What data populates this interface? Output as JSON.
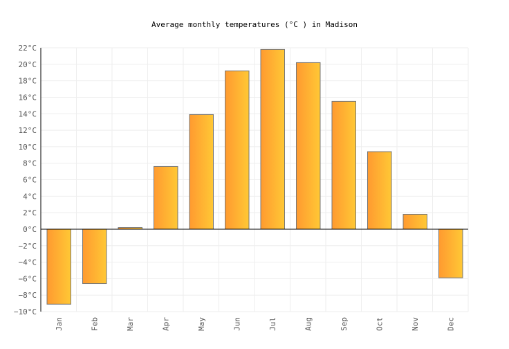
{
  "chart_data": {
    "type": "bar",
    "title": "Average monthly temperatures (°C ) in Madison",
    "xlabel": "",
    "ylabel": "",
    "unit": "°C",
    "categories": [
      "Jan",
      "Feb",
      "Mar",
      "Apr",
      "May",
      "Jun",
      "Jul",
      "Aug",
      "Sep",
      "Oct",
      "Nov",
      "Dec"
    ],
    "values": [
      -9.1,
      -6.6,
      0.2,
      7.6,
      13.9,
      19.2,
      21.8,
      20.2,
      15.5,
      9.4,
      1.8,
      -5.9
    ],
    "ylim": [
      -10,
      22
    ],
    "yticks": [
      -10,
      -8,
      -6,
      -4,
      -2,
      0,
      2,
      4,
      6,
      8,
      10,
      12,
      14,
      16,
      18,
      20,
      22
    ],
    "ytick_labels": [
      "−10°C",
      "−8°C",
      "−6°C",
      "−4°C",
      "−2°C",
      "0°C",
      "2°C",
      "4°C",
      "6°C",
      "8°C",
      "10°C",
      "12°C",
      "14°C",
      "16°C",
      "18°C",
      "20°C",
      "22°C"
    ],
    "grid": true,
    "legend": "none",
    "colors": {
      "bar_start": "#ff9a30",
      "bar_end": "#ffc835",
      "bar_stroke": "#777777",
      "grid": "#eeeeee",
      "axis": "#000000",
      "text": "#555555"
    }
  }
}
